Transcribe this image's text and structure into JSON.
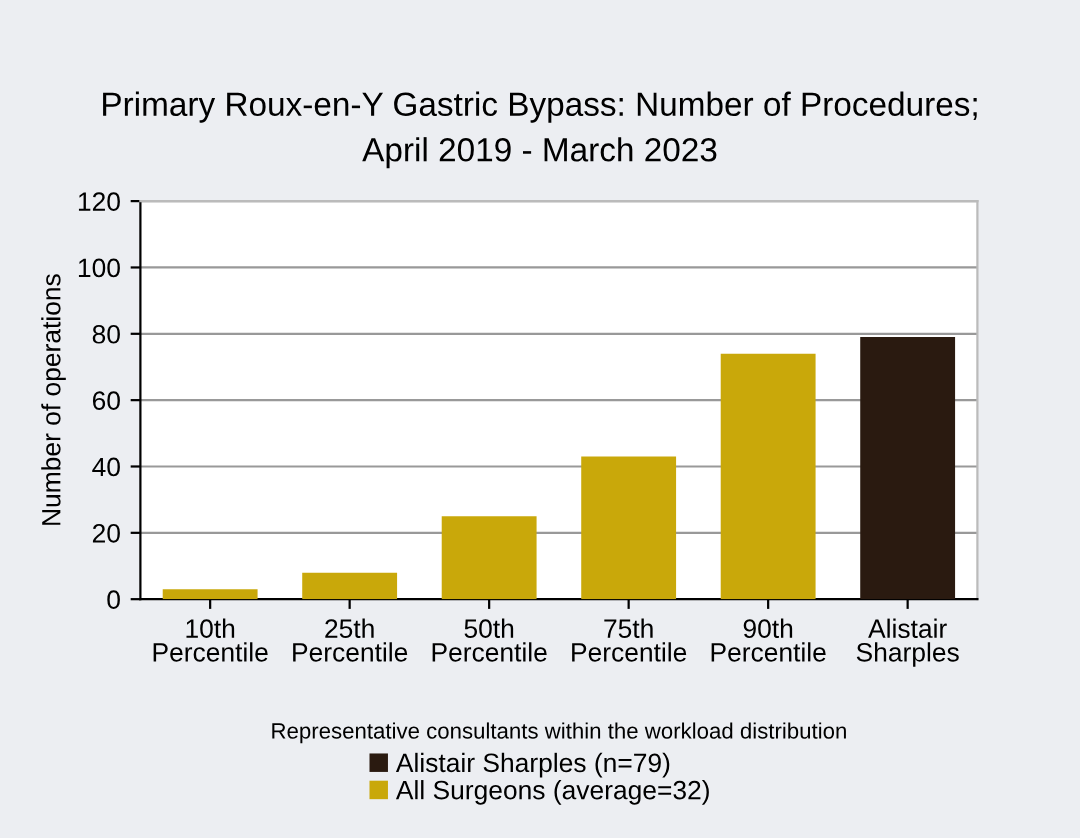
{
  "chart_data": {
    "type": "bar",
    "title": "Primary Roux-en-Y Gastric Bypass: Number of Procedures;\nApril 2019 - March 2023",
    "xlabel": "Representative consultants within the workload distribution",
    "ylabel": "Number of operations",
    "categories": [
      "10th\nPercentile",
      "25th\nPercentile",
      "50th\nPercentile",
      "75th\nPercentile",
      "90th\nPercentile",
      "Alistair\nSharples"
    ],
    "series": [
      {
        "name": "Alistair Sharples (n=79)",
        "color": "#2a1a10",
        "values": [
          null,
          null,
          null,
          null,
          null,
          79
        ]
      },
      {
        "name": "All Surgeons (average=32)",
        "color": "#c9a80a",
        "values": [
          3,
          8,
          25,
          43,
          74,
          null
        ]
      }
    ],
    "stacked": true,
    "ylim": [
      0,
      120
    ],
    "yticks": [
      0,
      20,
      40,
      60,
      80,
      100,
      120
    ],
    "grid": "y",
    "legend": "bottom"
  }
}
